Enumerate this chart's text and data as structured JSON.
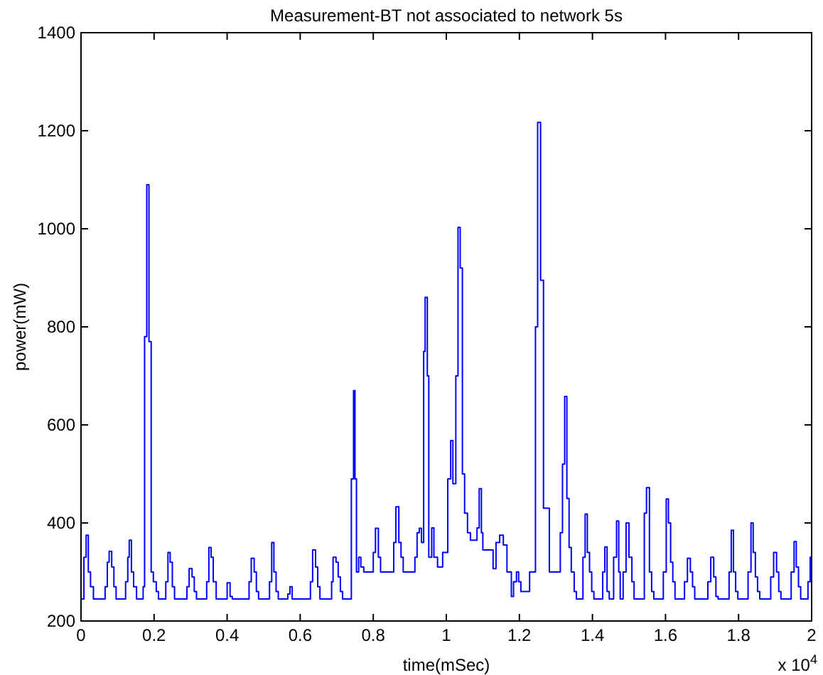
{
  "chart_data": {
    "type": "step",
    "title": "Measurement-BT not associated to network 5s",
    "xlabel": "time(mSec)",
    "ylabel": "power(mW)",
    "annotations": [
      "x 10$^{4}$"
    ],
    "xlim": [
      0,
      2
    ],
    "xticks": [
      0,
      0.2,
      0.4,
      0.6,
      0.8,
      1,
      1.2,
      1.4,
      1.6,
      1.8,
      2
    ],
    "ylim": [
      200,
      1400
    ],
    "yticks": [
      200,
      400,
      600,
      800,
      1000,
      1200,
      1400
    ],
    "color": "#0000ff",
    "x": [
      0,
      0.008,
      0.014,
      0.02,
      0.026,
      0.034,
      0.066,
      0.072,
      0.077,
      0.084,
      0.09,
      0.096,
      0.122,
      0.128,
      0.132,
      0.138,
      0.144,
      0.152,
      0.17,
      0.174,
      0.18,
      0.186,
      0.192,
      0.198,
      0.206,
      0.212,
      0.232,
      0.238,
      0.244,
      0.25,
      0.256,
      0.29,
      0.296,
      0.304,
      0.31,
      0.316,
      0.344,
      0.35,
      0.356,
      0.362,
      0.37,
      0.4,
      0.408,
      0.414,
      0.46,
      0.466,
      0.474,
      0.48,
      0.486,
      0.516,
      0.522,
      0.528,
      0.534,
      0.54,
      0.566,
      0.572,
      0.578,
      0.628,
      0.634,
      0.642,
      0.648,
      0.654,
      0.686,
      0.69,
      0.698,
      0.704,
      0.71,
      0.716,
      0.74,
      0.746,
      0.75,
      0.754,
      0.76,
      0.766,
      0.774,
      0.8,
      0.806,
      0.814,
      0.82,
      0.856,
      0.862,
      0.87,
      0.876,
      0.882,
      0.914,
      0.92,
      0.926,
      0.932,
      0.938,
      0.942,
      0.948,
      0.952,
      0.96,
      0.966,
      0.976,
      0.99,
      1.004,
      1.012,
      1.018,
      1.026,
      1.032,
      1.038,
      1.044,
      1.05,
      1.058,
      1.066,
      1.084,
      1.09,
      1.096,
      1.1,
      1.124,
      1.128,
      1.136,
      1.146,
      1.156,
      1.166,
      1.178,
      1.184,
      1.192,
      1.198,
      1.204,
      1.21,
      1.228,
      1.244,
      1.25,
      1.258,
      1.266,
      1.276,
      1.282,
      1.304,
      1.312,
      1.318,
      1.324,
      1.33,
      1.336,
      1.342,
      1.35,
      1.356,
      1.374,
      1.38,
      1.386,
      1.392,
      1.398,
      1.404,
      1.428,
      1.434,
      1.44,
      1.446,
      1.458,
      1.466,
      1.472,
      1.476,
      1.484,
      1.492,
      1.5,
      1.508,
      1.514,
      1.542,
      1.548,
      1.556,
      1.562,
      1.568,
      1.594,
      1.602,
      1.608,
      1.614,
      1.62,
      1.626,
      1.652,
      1.66,
      1.668,
      1.674,
      1.68,
      1.716,
      1.724,
      1.732,
      1.738,
      1.744,
      1.774,
      1.78,
      1.786,
      1.792,
      1.798,
      1.826,
      1.834,
      1.84,
      1.846,
      1.852,
      1.858,
      1.888,
      1.896,
      1.904,
      1.91,
      1.916,
      1.944,
      1.952,
      1.958,
      1.964,
      1.97,
      1.99,
      1.996,
      2
    ],
    "values": [
      245,
      330,
      375,
      300,
      270,
      245,
      270,
      320,
      342,
      310,
      270,
      245,
      280,
      330,
      365,
      300,
      270,
      245,
      270,
      780,
      1090,
      770,
      300,
      280,
      260,
      245,
      280,
      340,
      320,
      270,
      245,
      270,
      307,
      290,
      260,
      245,
      280,
      350,
      330,
      280,
      245,
      278,
      250,
      245,
      280,
      328,
      300,
      260,
      245,
      280,
      360,
      300,
      260,
      245,
      255,
      270,
      245,
      280,
      345,
      310,
      270,
      245,
      280,
      330,
      320,
      290,
      260,
      245,
      490,
      670,
      490,
      300,
      330,
      310,
      300,
      340,
      389,
      330,
      300,
      360,
      433,
      360,
      330,
      300,
      330,
      380,
      389,
      360,
      750,
      860,
      700,
      330,
      390,
      330,
      310,
      340,
      490,
      568,
      480,
      700,
      1003,
      920,
      500,
      420,
      380,
      365,
      390,
      470,
      380,
      345,
      345,
      307,
      360,
      375,
      355,
      300,
      250,
      280,
      300,
      280,
      260,
      260,
      300,
      800,
      1217,
      895,
      430,
      430,
      300,
      300,
      380,
      520,
      658,
      450,
      350,
      300,
      260,
      245,
      330,
      418,
      340,
      300,
      260,
      245,
      300,
      351,
      260,
      245,
      330,
      404,
      300,
      245,
      300,
      400,
      330,
      280,
      245,
      420,
      472,
      300,
      260,
      245,
      300,
      449,
      400,
      320,
      280,
      245,
      280,
      328,
      300,
      270,
      245,
      280,
      330,
      290,
      250,
      245,
      300,
      385,
      300,
      260,
      245,
      300,
      400,
      340,
      290,
      260,
      245,
      290,
      340,
      300,
      260,
      245,
      300,
      362,
      310,
      270,
      245,
      280,
      330,
      300
    ]
  }
}
